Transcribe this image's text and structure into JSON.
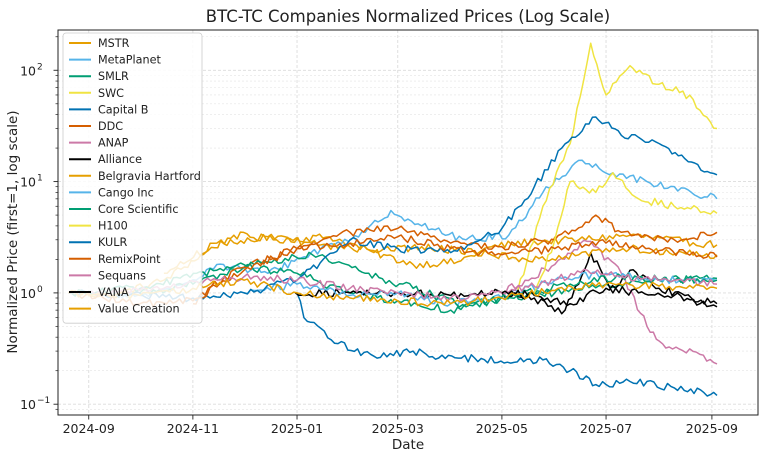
{
  "chart_data": {
    "type": "line",
    "title": "BTC-TC Companies Normalized Prices (Log Scale)",
    "xlabel": "Date",
    "ylabel": "Normalized Price (first=1, log scale)",
    "yscale": "log",
    "ylim": [
      0.08,
      230
    ],
    "xlim": [
      "2024-08-14",
      "2025-09-28"
    ],
    "x_ticks": [
      "2024-09",
      "2024-11",
      "2025-01",
      "2025-03",
      "2025-05",
      "2025-07",
      "2025-09"
    ],
    "y_ticks": [
      {
        "value": 0.1,
        "label": "10",
        "exp": "−1"
      },
      {
        "value": 1,
        "label": "10",
        "exp": "0"
      },
      {
        "value": 10,
        "label": "10",
        "exp": "1"
      },
      {
        "value": 100,
        "label": "10",
        "exp": "2"
      }
    ],
    "grid": true,
    "legend_position": "top-left",
    "series": [
      {
        "name": "MSTR",
        "color": "#e69f00",
        "points": [
          [
            "2024-08-20",
            1.0
          ],
          [
            "2024-09-15",
            0.95
          ],
          [
            "2024-10-15",
            1.3
          ],
          [
            "2024-11-10",
            2.4
          ],
          [
            "2024-11-25",
            3.3
          ],
          [
            "2024-12-20",
            3.0
          ],
          [
            "2025-01-20",
            3.2
          ],
          [
            "2025-02-15",
            2.3
          ],
          [
            "2025-03-10",
            1.8
          ],
          [
            "2025-04-05",
            1.9
          ],
          [
            "2025-04-25",
            2.6
          ],
          [
            "2025-05-20",
            2.9
          ],
          [
            "2025-06-15",
            3.0
          ],
          [
            "2025-07-15",
            3.3
          ],
          [
            "2025-08-15",
            2.9
          ],
          [
            "2025-09-04",
            2.7
          ]
        ]
      },
      {
        "name": "MetaPlanet",
        "color": "#56b4e9",
        "points": [
          [
            "2024-09-20",
            0.9
          ],
          [
            "2024-10-20",
            1.05
          ],
          [
            "2024-11-15",
            1.8
          ],
          [
            "2024-12-15",
            1.5
          ],
          [
            "2025-01-15",
            2.5
          ],
          [
            "2025-02-10",
            3.5
          ],
          [
            "2025-02-25",
            5.5
          ],
          [
            "2025-03-15",
            4.0
          ],
          [
            "2025-04-10",
            3.0
          ],
          [
            "2025-05-05",
            3.3
          ],
          [
            "2025-05-25",
            8.0
          ],
          [
            "2025-06-15",
            15.5
          ],
          [
            "2025-07-05",
            12.0
          ],
          [
            "2025-07-25",
            10.0
          ],
          [
            "2025-08-20",
            8.0
          ],
          [
            "2025-09-04",
            7.0
          ]
        ]
      },
      {
        "name": "SMLR",
        "color": "#009e73",
        "points": [
          [
            "2024-10-01",
            1.0
          ],
          [
            "2024-11-01",
            1.2
          ],
          [
            "2024-12-01",
            1.7
          ],
          [
            "2025-01-01",
            1.5
          ],
          [
            "2025-02-01",
            1.0
          ],
          [
            "2025-03-01",
            0.85
          ],
          [
            "2025-04-01",
            0.7
          ],
          [
            "2025-05-01",
            0.9
          ],
          [
            "2025-06-01",
            1.0
          ],
          [
            "2025-07-01",
            1.2
          ],
          [
            "2025-08-01",
            1.3
          ],
          [
            "2025-09-04",
            1.35
          ]
        ]
      },
      {
        "name": "SWC",
        "color": "#f0e442",
        "points": [
          [
            "2025-05-10",
            1.0
          ],
          [
            "2025-05-25",
            6.0
          ],
          [
            "2025-06-10",
            22.0
          ],
          [
            "2025-06-22",
            175.0
          ],
          [
            "2025-07-01",
            60.0
          ],
          [
            "2025-07-15",
            110.0
          ],
          [
            "2025-08-01",
            75.0
          ],
          [
            "2025-08-15",
            65.0
          ],
          [
            "2025-09-04",
            30.0
          ]
        ]
      },
      {
        "name": "Capital B",
        "color": "#0072b2",
        "points": [
          [
            "2025-01-01",
            1.0
          ],
          [
            "2025-01-05",
            0.6
          ],
          [
            "2025-01-25",
            0.35
          ],
          [
            "2025-02-15",
            0.27
          ],
          [
            "2025-03-10",
            0.3
          ],
          [
            "2025-03-25",
            0.26
          ],
          [
            "2025-04-15",
            0.26
          ],
          [
            "2025-05-10",
            0.24
          ],
          [
            "2025-05-25",
            0.25
          ],
          [
            "2025-06-10",
            0.2
          ],
          [
            "2025-06-25",
            0.15
          ],
          [
            "2025-07-15",
            0.16
          ],
          [
            "2025-08-10",
            0.14
          ],
          [
            "2025-09-04",
            0.12
          ]
        ]
      },
      {
        "name": "DDC",
        "color": "#d55e00",
        "points": [
          [
            "2024-11-01",
            0.8
          ],
          [
            "2024-11-10",
            1.1
          ],
          [
            "2024-12-01",
            1.7
          ],
          [
            "2025-01-01",
            2.5
          ],
          [
            "2025-02-01",
            3.5
          ],
          [
            "2025-03-01",
            3.8
          ],
          [
            "2025-04-01",
            2.8
          ],
          [
            "2025-05-01",
            2.6
          ],
          [
            "2025-06-01",
            3.0
          ],
          [
            "2025-06-25",
            5.0
          ],
          [
            "2025-07-10",
            3.5
          ],
          [
            "2025-08-10",
            3.0
          ],
          [
            "2025-09-04",
            3.5
          ]
        ]
      },
      {
        "name": "ANAP",
        "color": "#cc79a7",
        "points": [
          [
            "2025-05-01",
            1.0
          ],
          [
            "2025-06-01",
            1.8
          ],
          [
            "2025-06-20",
            2.9
          ],
          [
            "2025-07-10",
            1.5
          ],
          [
            "2025-07-25",
            0.5
          ],
          [
            "2025-08-05",
            0.32
          ],
          [
            "2025-08-25",
            0.28
          ],
          [
            "2025-09-04",
            0.23
          ]
        ]
      },
      {
        "name": "Alliance",
        "color": "#000000",
        "points": [
          [
            "2024-12-31",
            1.0
          ],
          [
            "2025-02-01",
            1.0
          ],
          [
            "2025-03-01",
            1.0
          ],
          [
            "2025-04-01",
            0.95
          ],
          [
            "2025-05-01",
            1.0
          ],
          [
            "2025-05-20",
            0.9
          ],
          [
            "2025-06-05",
            0.65
          ],
          [
            "2025-06-15",
            1.2
          ],
          [
            "2025-06-22",
            2.3
          ],
          [
            "2025-07-05",
            1.0
          ],
          [
            "2025-07-15",
            1.6
          ],
          [
            "2025-08-01",
            1.1
          ],
          [
            "2025-08-20",
            0.9
          ],
          [
            "2025-09-04",
            0.8
          ]
        ]
      },
      {
        "name": "Belgravia Hartford",
        "color": "#e69f00",
        "points": [
          [
            "2024-10-15",
            1.5
          ],
          [
            "2024-11-15",
            2.8
          ],
          [
            "2024-12-15",
            3.2
          ],
          [
            "2025-01-15",
            2.7
          ],
          [
            "2025-02-15",
            2.4
          ],
          [
            "2025-03-15",
            2.6
          ],
          [
            "2025-04-15",
            2.3
          ],
          [
            "2025-05-15",
            2.0
          ],
          [
            "2025-06-15",
            2.2
          ],
          [
            "2025-07-15",
            2.5
          ],
          [
            "2025-08-15",
            2.3
          ],
          [
            "2025-09-04",
            2.2
          ]
        ]
      },
      {
        "name": "Cango Inc",
        "color": "#56b4e9",
        "points": [
          [
            "2024-12-01",
            1.0
          ],
          [
            "2025-01-01",
            1.2
          ],
          [
            "2025-02-01",
            0.95
          ],
          [
            "2025-03-01",
            1.0
          ],
          [
            "2025-04-01",
            0.8
          ],
          [
            "2025-05-01",
            0.9
          ],
          [
            "2025-06-01",
            1.3
          ],
          [
            "2025-07-01",
            1.5
          ],
          [
            "2025-08-01",
            1.3
          ],
          [
            "2025-09-04",
            1.3
          ]
        ]
      },
      {
        "name": "Core Scientific",
        "color": "#009e73",
        "points": [
          [
            "2024-08-20",
            1.0
          ],
          [
            "2024-10-01",
            1.1
          ],
          [
            "2024-11-15",
            1.6
          ],
          [
            "2024-12-15",
            1.9
          ],
          [
            "2025-01-10",
            2.2
          ],
          [
            "2025-02-10",
            1.5
          ],
          [
            "2025-03-10",
            1.1
          ],
          [
            "2025-04-10",
            0.75
          ],
          [
            "2025-05-10",
            0.95
          ],
          [
            "2025-06-10",
            1.2
          ],
          [
            "2025-07-10",
            1.4
          ],
          [
            "2025-08-10",
            1.3
          ],
          [
            "2025-09-04",
            1.3
          ]
        ]
      },
      {
        "name": "H100",
        "color": "#f0e442",
        "points": [
          [
            "2025-05-20",
            1.0
          ],
          [
            "2025-06-01",
            3.0
          ],
          [
            "2025-06-10",
            10.0
          ],
          [
            "2025-06-25",
            8.0
          ],
          [
            "2025-07-05",
            12.0
          ],
          [
            "2025-07-20",
            7.0
          ],
          [
            "2025-08-10",
            6.0
          ],
          [
            "2025-09-04",
            5.2
          ]
        ]
      },
      {
        "name": "KULR",
        "color": "#0072b2",
        "points": [
          [
            "2024-08-20",
            1.0
          ],
          [
            "2024-11-01",
            0.9
          ],
          [
            "2024-12-01",
            1.0
          ],
          [
            "2025-01-01",
            1.3
          ],
          [
            "2025-02-01",
            3.0
          ],
          [
            "2025-03-01",
            2.5
          ],
          [
            "2025-04-01",
            2.3
          ],
          [
            "2025-05-01",
            3.8
          ],
          [
            "2025-05-20",
            9.0
          ],
          [
            "2025-06-05",
            20.0
          ],
          [
            "2025-06-25",
            38.0
          ],
          [
            "2025-07-10",
            26.0
          ],
          [
            "2025-08-01",
            22.0
          ],
          [
            "2025-08-20",
            15.0
          ],
          [
            "2025-09-04",
            11.5
          ]
        ]
      },
      {
        "name": "RemixPoint",
        "color": "#d55e00",
        "points": [
          [
            "2024-08-20",
            1.0
          ],
          [
            "2024-10-01",
            0.8
          ],
          [
            "2024-11-01",
            0.85
          ],
          [
            "2024-12-01",
            1.6
          ],
          [
            "2025-01-01",
            2.5
          ],
          [
            "2025-02-01",
            2.8
          ],
          [
            "2025-03-01",
            3.2
          ],
          [
            "2025-04-01",
            2.5
          ],
          [
            "2025-05-01",
            2.2
          ],
          [
            "2025-06-01",
            2.5
          ],
          [
            "2025-07-01",
            2.8
          ],
          [
            "2025-08-01",
            2.4
          ],
          [
            "2025-09-04",
            2.1
          ]
        ]
      },
      {
        "name": "Sequans",
        "color": "#cc79a7",
        "points": [
          [
            "2024-09-01",
            1.0
          ],
          [
            "2024-10-15",
            1.1
          ],
          [
            "2024-12-01",
            1.4
          ],
          [
            "2025-01-01",
            1.3
          ],
          [
            "2025-02-01",
            1.1
          ],
          [
            "2025-03-01",
            1.0
          ],
          [
            "2025-04-01",
            0.9
          ],
          [
            "2025-05-01",
            1.0
          ],
          [
            "2025-06-01",
            1.3
          ],
          [
            "2025-06-20",
            1.6
          ],
          [
            "2025-07-10",
            1.4
          ],
          [
            "2025-08-10",
            1.3
          ],
          [
            "2025-09-04",
            1.2
          ]
        ]
      },
      {
        "name": "VANA",
        "color": "#000000",
        "points": [
          [
            "2025-05-01",
            1.0
          ],
          [
            "2025-05-20",
            0.95
          ],
          [
            "2025-06-10",
            0.8
          ],
          [
            "2025-07-01",
            1.1
          ],
          [
            "2025-07-20",
            1.0
          ],
          [
            "2025-08-10",
            0.95
          ],
          [
            "2025-08-25",
            0.8
          ],
          [
            "2025-09-04",
            0.75
          ]
        ]
      },
      {
        "name": "Value Creation",
        "color": "#e69f00",
        "points": [
          [
            "2024-08-20",
            1.0
          ],
          [
            "2024-10-01",
            0.95
          ],
          [
            "2024-11-01",
            1.1
          ],
          [
            "2024-12-01",
            1.3
          ],
          [
            "2025-01-01",
            1.0
          ],
          [
            "2025-02-01",
            0.9
          ],
          [
            "2025-03-01",
            0.85
          ],
          [
            "2025-04-01",
            0.8
          ],
          [
            "2025-05-01",
            0.9
          ],
          [
            "2025-06-01",
            1.05
          ],
          [
            "2025-07-01",
            1.2
          ],
          [
            "2025-08-01",
            1.15
          ],
          [
            "2025-09-04",
            1.1
          ]
        ]
      }
    ]
  }
}
